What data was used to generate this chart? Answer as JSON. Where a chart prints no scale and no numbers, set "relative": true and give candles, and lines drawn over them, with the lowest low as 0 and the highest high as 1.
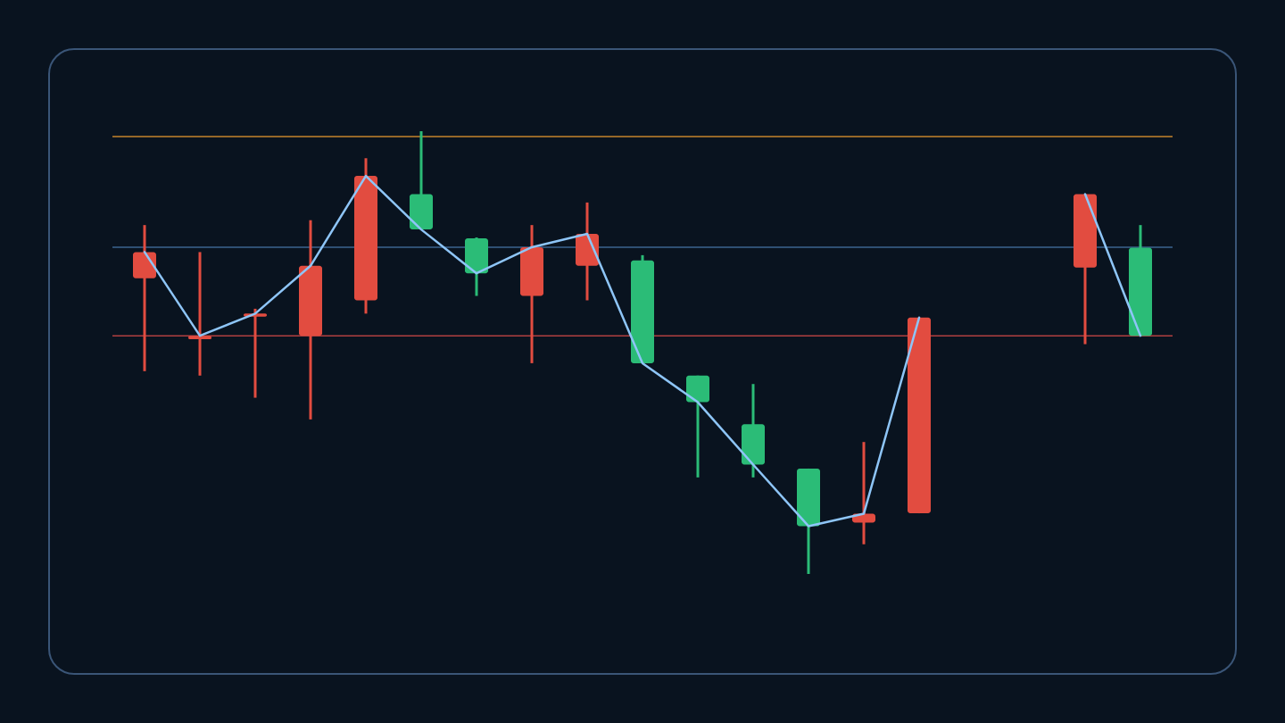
{
  "chart_data": {
    "type": "candlestick",
    "relative": true,
    "categories": [
      null,
      null,
      null,
      null,
      null,
      null,
      null,
      null,
      null,
      null,
      null,
      null,
      null,
      null,
      null,
      null,
      null,
      null,
      null
    ],
    "ohlc": [
      [
        0.668,
        0.788,
        0.458,
        0.727
      ],
      [
        0.53,
        0.727,
        0.448,
        0.538
      ],
      [
        0.581,
        0.599,
        0.398,
        0.588
      ],
      [
        0.538,
        0.799,
        0.349,
        0.696
      ],
      [
        0.618,
        0.939,
        0.588,
        0.899
      ],
      [
        0.858,
        1.0,
        0.778,
        0.778
      ],
      [
        0.758,
        0.76,
        0.628,
        0.679
      ],
      [
        0.628,
        0.788,
        0.476,
        0.738
      ],
      [
        0.696,
        0.839,
        0.618,
        0.768
      ],
      [
        0.708,
        0.72,
        0.476,
        0.476
      ],
      [
        0.448,
        0.448,
        0.218,
        0.388
      ],
      [
        0.338,
        0.429,
        0.218,
        0.247
      ],
      [
        0.238,
        0.238,
        0.0,
        0.108
      ],
      [
        0.116,
        0.298,
        0.067,
        0.136
      ],
      [
        0.137,
        0.579,
        0.137,
        0.579
      ],
      null,
      null,
      [
        0.692,
        0.858,
        0.519,
        0.858
      ],
      [
        0.737,
        0.788,
        0.538,
        0.538
      ]
    ],
    "colors": [
      "#e24c40",
      "#e24c40",
      "#e24c40",
      "#e24c40",
      "#e24c40",
      "#2bbc77",
      "#2bbc77",
      "#e24c40",
      "#e24c40",
      "#2bbc77",
      "#2bbc77",
      "#2bbc77",
      "#2bbc77",
      "#e24c40",
      "#e24c40",
      null,
      null,
      "#e24c40",
      "#2bbc77"
    ],
    "series": [
      {
        "type": "line",
        "color": "#8ec5f7",
        "values": [
          0.727,
          0.538,
          0.588,
          0.696,
          0.899,
          0.778,
          0.679,
          0.738,
          0.768,
          0.476,
          0.388,
          0.247,
          0.108,
          0.136,
          0.579,
          null,
          null,
          0.858,
          0.538
        ]
      }
    ],
    "ref_lines": [
      {
        "axis": "y",
        "value": 0.988,
        "color": "#c4852c"
      },
      {
        "axis": "y",
        "value": 0.738,
        "color": "#3b6590"
      },
      {
        "axis": "y",
        "value": 0.538,
        "color": "#b04040"
      }
    ]
  }
}
